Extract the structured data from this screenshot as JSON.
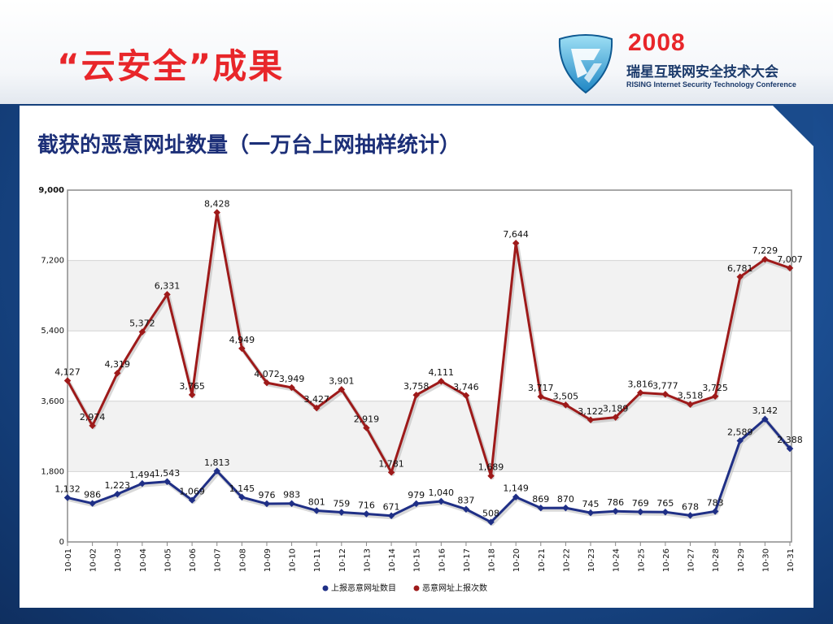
{
  "slide": {
    "title": "“云安全”成果",
    "logo_year": "2008",
    "logo_cn": "瑞星互联网安全技术大会",
    "logo_en": "RISING Internet Security Technology Conference"
  },
  "chart_data": {
    "type": "line",
    "title": "截获的恶意网址数量（一万台上网抽样统计）",
    "xlabel": "",
    "ylabel": "",
    "categories": [
      "10-01",
      "10-02",
      "10-03",
      "10-04",
      "10-05",
      "10-06",
      "10-07",
      "10-08",
      "10-09",
      "10-10",
      "10-11",
      "10-12",
      "10-13",
      "10-14",
      "10-15",
      "10-16",
      "10-17",
      "10-18",
      "10-20",
      "10-21",
      "10-22",
      "10-23",
      "10-24",
      "10-25",
      "10-26",
      "10-27",
      "10-28",
      "10-29",
      "10-30",
      "10-31"
    ],
    "ylim": [
      0,
      9000
    ],
    "yticks": [
      0,
      1800,
      3600,
      5400,
      7200,
      9000
    ],
    "ytick_labels": [
      "0",
      "1,800",
      "3,600",
      "5,400",
      "7,200",
      "9,000"
    ],
    "grid": "horizontal",
    "legend_position": "bottom",
    "series": [
      {
        "name": "上报恶意网址数目",
        "color": "#1f2f86",
        "values": [
          1132,
          986,
          1223,
          1494,
          1543,
          1069,
          1813,
          1145,
          976,
          983,
          801,
          759,
          716,
          671,
          979,
          1040,
          837,
          508,
          1149,
          869,
          870,
          745,
          786,
          769,
          765,
          678,
          783,
          2589,
          3142,
          2388
        ],
        "labels": [
          "1,132",
          "986",
          "1,223",
          "1,494",
          "1,543",
          "1,069",
          "1,813",
          "1,145",
          "976",
          "983",
          "801",
          "759",
          "716",
          "671",
          "979",
          "1,040",
          "837",
          "508",
          "1,149",
          "869",
          "870",
          "745",
          "786",
          "769",
          "765",
          "678",
          "783",
          "2,589",
          "3,142",
          "2,388"
        ]
      },
      {
        "name": "恶意网址上报次数",
        "color": "#9e1a1a",
        "values": [
          4127,
          2974,
          4319,
          5372,
          6331,
          3765,
          8428,
          4949,
          4072,
          3949,
          3427,
          3901,
          2919,
          1781,
          3758,
          4111,
          3746,
          1689,
          7644,
          3717,
          3505,
          3122,
          3189,
          3816,
          3777,
          3518,
          3725,
          6781,
          7229,
          7007
        ],
        "labels": [
          "4,127",
          "2,974",
          "4,319",
          "5,372",
          "6,331",
          "3,765",
          "8,428",
          "4,949",
          "4,072",
          "3,949",
          "3,427",
          "3,901",
          "2,919",
          "1,781",
          "3,758",
          "4,111",
          "3,746",
          "1,689",
          "7,644",
          "3,717",
          "3,505",
          "3,122",
          "3,189",
          "3,816",
          "3,777",
          "3,518",
          "3,725",
          "6,781",
          "7,229",
          "7,007"
        ]
      }
    ]
  }
}
